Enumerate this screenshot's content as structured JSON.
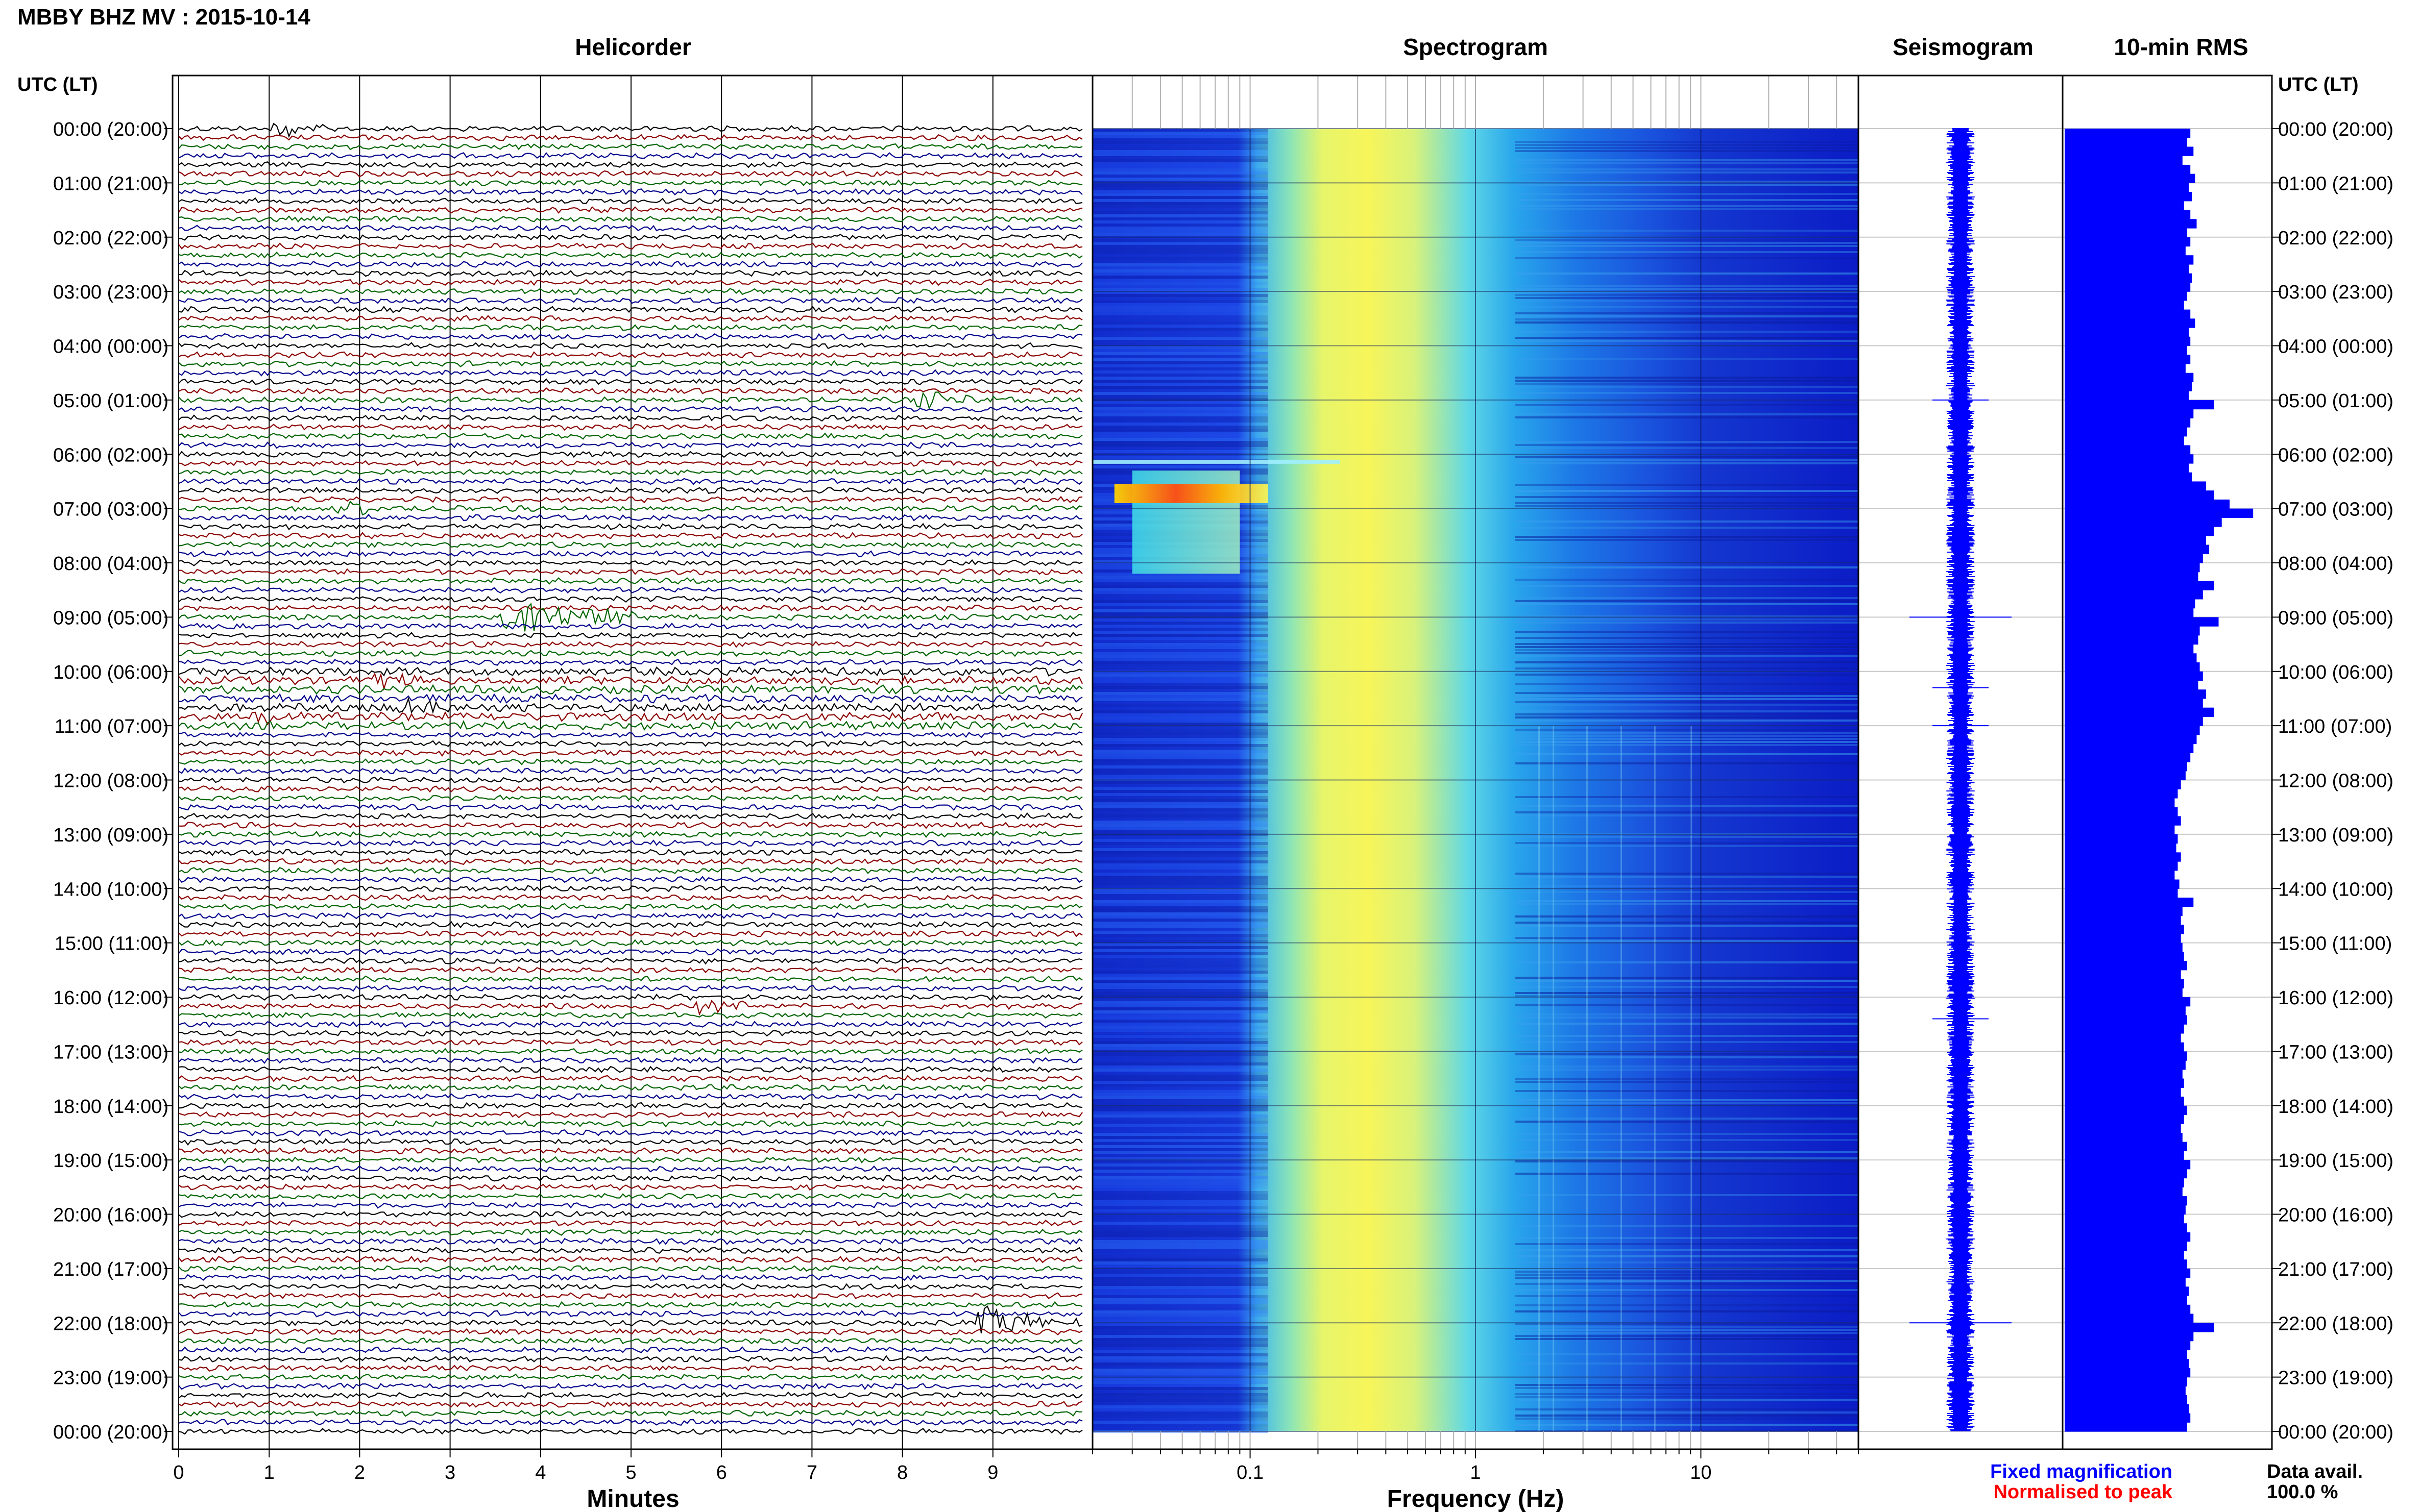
{
  "header": {
    "title": "MBBY BHZ MV : 2015-10-14",
    "utc_label_left": "UTC (LT)",
    "utc_label_right": "UTC (LT)"
  },
  "panels": {
    "helicorder": "Helicorder",
    "spectrogram": "Spectrogram",
    "seismogram": "Seismogram",
    "rms": "10-min RMS"
  },
  "footer": {
    "minutes_label": "Minutes",
    "frequency_label": "Frequency (Hz)",
    "legend_fixed": "Fixed magnification",
    "legend_normalised": "Normalised to peak",
    "data_avail_label": "Data avail.",
    "data_avail_value": "100.0 %"
  },
  "colors": {
    "trace_cycle": [
      "#000000",
      "#8b0000",
      "#006400",
      "#00008b"
    ],
    "fixed": "#0000ff",
    "normalised": "#ff0000",
    "rms_bar": "#0000ff",
    "spectrogram_low": "#0a1fd6",
    "spectrogram_mid": "#2fd0e0",
    "spectrogram_high": "#ffff00",
    "spectrogram_peak": "#ff2000"
  },
  "chart_data": [
    {
      "type": "line",
      "name": "helicorder",
      "title": "Helicorder",
      "xlabel": "Minutes",
      "x_ticks": [
        "0",
        "1",
        "2",
        "3",
        "4",
        "5",
        "6",
        "7",
        "8",
        "9"
      ],
      "xlim": [
        0,
        10
      ],
      "row_labels": [
        "00:00 (20:00)",
        "01:00 (21:00)",
        "02:00 (22:00)",
        "03:00 (23:00)",
        "04:00 (00:00)",
        "05:00 (01:00)",
        "06:00 (02:00)",
        "07:00 (03:00)",
        "08:00 (04:00)",
        "09:00 (05:00)",
        "10:00 (06:00)",
        "11:00 (07:00)",
        "12:00 (08:00)",
        "13:00 (09:00)",
        "14:00 (10:00)",
        "15:00 (11:00)",
        "16:00 (12:00)",
        "17:00 (13:00)",
        "18:00 (14:00)",
        "19:00 (15:00)",
        "20:00 (16:00)",
        "21:00 (17:00)",
        "22:00 (18:00)",
        "23:00 (19:00)",
        "00:00 (20:00)"
      ],
      "traces_per_hour": 6,
      "events": [
        {
          "row": 0,
          "minute": 1.2,
          "amp": 0.9
        },
        {
          "row": 30,
          "minute": 8.3,
          "amp": 1.0
        },
        {
          "row": 42,
          "minute": 1.9,
          "amp": 0.8
        },
        {
          "row": 54,
          "minute": 3.75,
          "amp": 2.2
        },
        {
          "row": 54,
          "minute": 4.9,
          "amp": 0.5
        },
        {
          "row": 61,
          "minute": 2.3,
          "amp": 0.9
        },
        {
          "row": 64,
          "minute": 2.5,
          "amp": 1.0
        },
        {
          "row": 65,
          "minute": 1.0,
          "amp": 0.8
        },
        {
          "row": 97,
          "minute": 5.85,
          "amp": 0.9
        },
        {
          "row": 132,
          "minute": 9.0,
          "amp": 1.6
        }
      ]
    },
    {
      "type": "heatmap",
      "name": "spectrogram",
      "title": "Spectrogram",
      "xlabel": "Frequency (Hz)",
      "x_scale": "log",
      "xlim": [
        0.02,
        50
      ],
      "x_ticks": [
        0.1,
        1,
        10
      ],
      "x_tick_labels": [
        "0.1",
        "1",
        "10"
      ],
      "energy_peak_hz": 0.35,
      "bright_low_band": {
        "hours": [
          6.3,
          8.2
        ],
        "freq_hz": [
          0.03,
          0.09
        ]
      }
    },
    {
      "type": "line",
      "name": "seismogram",
      "title": "Seismogram",
      "spikes_hours": [
        5.0,
        9.0,
        10.3,
        11.0,
        16.4,
        22.0
      ]
    },
    {
      "type": "bar",
      "name": "rms",
      "title": "10-min RMS",
      "interval_minutes": 10,
      "values": [
        0.8,
        0.78,
        0.82,
        0.75,
        0.8,
        0.83,
        0.79,
        0.81,
        0.76,
        0.8,
        0.84,
        0.78,
        0.8,
        0.77,
        0.82,
        0.79,
        0.81,
        0.8,
        0.78,
        0.76,
        0.8,
        0.83,
        0.79,
        0.8,
        0.78,
        0.8,
        0.77,
        0.82,
        0.81,
        0.79,
        0.95,
        0.82,
        0.8,
        0.78,
        0.76,
        0.8,
        0.82,
        0.79,
        0.81,
        0.9,
        0.95,
        1.05,
        1.2,
        1.0,
        0.95,
        0.9,
        0.92,
        0.88,
        0.86,
        0.85,
        0.95,
        0.88,
        0.83,
        0.82,
        0.98,
        0.86,
        0.85,
        0.82,
        0.84,
        0.86,
        0.88,
        0.85,
        0.9,
        0.88,
        0.95,
        0.88,
        0.86,
        0.84,
        0.82,
        0.8,
        0.78,
        0.77,
        0.74,
        0.72,
        0.7,
        0.72,
        0.74,
        0.7,
        0.72,
        0.71,
        0.74,
        0.72,
        0.7,
        0.73,
        0.72,
        0.82,
        0.75,
        0.74,
        0.76,
        0.74,
        0.75,
        0.76,
        0.78,
        0.74,
        0.76,
        0.75,
        0.8,
        0.77,
        0.78,
        0.76,
        0.74,
        0.76,
        0.78,
        0.77,
        0.75,
        0.76,
        0.74,
        0.76,
        0.78,
        0.76,
        0.74,
        0.75,
        0.78,
        0.76,
        0.8,
        0.78,
        0.76,
        0.75,
        0.78,
        0.77,
        0.76,
        0.78,
        0.8,
        0.78,
        0.76,
        0.78,
        0.8,
        0.77,
        0.79,
        0.78,
        0.8,
        0.82,
        0.95,
        0.82,
        0.8,
        0.78,
        0.79,
        0.8,
        0.78,
        0.77,
        0.78,
        0.79,
        0.8,
        0.78
      ],
      "xlim": [
        0,
        1.3
      ]
    }
  ]
}
